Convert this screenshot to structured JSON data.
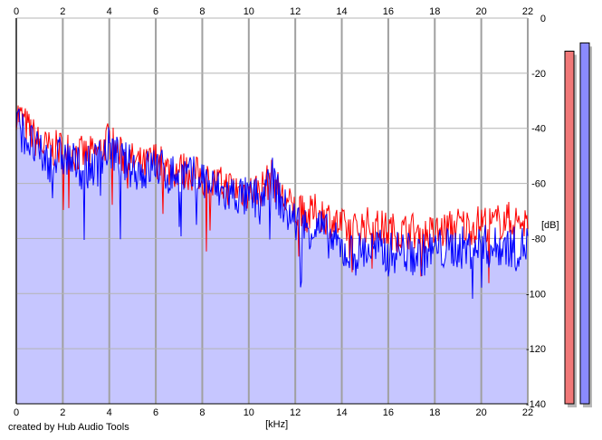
{
  "chart_data": {
    "type": "area",
    "x_unit_label": "[kHz]",
    "y_unit_label": "[dB]",
    "xlim": [
      0,
      22
    ],
    "ylim": [
      -140,
      0
    ],
    "x_ticks": [
      "0",
      "2",
      "4",
      "6",
      "8",
      "10",
      "12",
      "14",
      "16",
      "18",
      "20",
      "22"
    ],
    "y_ticks": [
      "0",
      "-20",
      "-40",
      "-60",
      "-80",
      "-100",
      "-120",
      "-140"
    ],
    "grid": true,
    "series": [
      {
        "color": "#ff0000",
        "fill": "none",
        "x": [
          0,
          0.5,
          1,
          1.5,
          2,
          2.5,
          3,
          3.5,
          4,
          4.5,
          5,
          5.5,
          6,
          6.5,
          7,
          7.5,
          8,
          8.5,
          9,
          9.5,
          10,
          10.5,
          11,
          11.5,
          12,
          12.5,
          13,
          13.5,
          14,
          14.5,
          15,
          15.5,
          16,
          16.5,
          17,
          17.5,
          18,
          18.5,
          19,
          19.5,
          20,
          20.5,
          21,
          21.5,
          22
        ],
        "values": [
          -34,
          -40,
          -46,
          -48,
          -47,
          -49,
          -50,
          -49,
          -44,
          -50,
          -52,
          -54,
          -51,
          -55,
          -55,
          -56,
          -58,
          -60,
          -61,
          -62,
          -63,
          -62,
          -58,
          -66,
          -70,
          -72,
          -70,
          -73,
          -76,
          -77,
          -75,
          -76,
          -77,
          -78,
          -77,
          -79,
          -78,
          -77,
          -75,
          -76,
          -74,
          -75,
          -73,
          -74,
          -74
        ]
      },
      {
        "color": "#0000ff",
        "fill": "#c6c6ff",
        "x": [
          0,
          0.5,
          1,
          1.5,
          2,
          2.5,
          3,
          3.5,
          4,
          4.5,
          5,
          5.5,
          6,
          6.5,
          7,
          7.5,
          8,
          8.5,
          9,
          9.5,
          10,
          10.5,
          11,
          11.5,
          12,
          12.5,
          13,
          13.5,
          14,
          14.5,
          15,
          15.5,
          16,
          16.5,
          17,
          17.5,
          18,
          18.5,
          19,
          19.5,
          20,
          20.5,
          21,
          21.5,
          22
        ],
        "values": [
          -38,
          -44,
          -50,
          -52,
          -50,
          -53,
          -55,
          -52,
          -47,
          -52,
          -54,
          -56,
          -53,
          -57,
          -56,
          -58,
          -58,
          -62,
          -64,
          -64,
          -66,
          -65,
          -58,
          -69,
          -74,
          -76,
          -76,
          -80,
          -84,
          -86,
          -84,
          -84,
          -86,
          -84,
          -86,
          -86,
          -84,
          -84,
          -83,
          -84,
          -82,
          -84,
          -82,
          -84,
          -82
        ]
      }
    ],
    "meters": [
      {
        "color": "#f07878",
        "value_db": -12
      },
      {
        "color": "#8a8aff",
        "value_db": -9
      }
    ]
  },
  "footer": {
    "credit": "created by Hub Audio Tools"
  }
}
